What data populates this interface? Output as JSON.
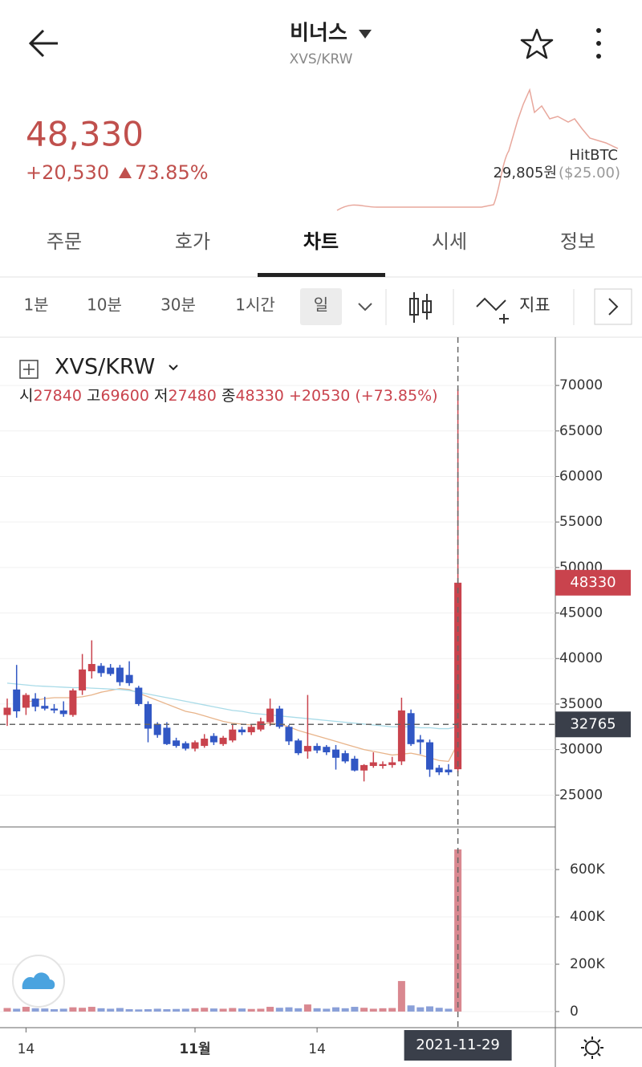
{
  "header": {
    "title": "비너스",
    "subtitle": "XVS/KRW"
  },
  "price": {
    "last": "48,330",
    "change": "+20,530",
    "change_pct": "73.85%",
    "exchange": "HitBTC",
    "exchange_price": "29,805원",
    "exchange_usd": "($25.00)"
  },
  "tabs": [
    "주문",
    "호가",
    "차트",
    "시세",
    "정보"
  ],
  "intervals": [
    "1분",
    "10분",
    "30분",
    "1시간",
    "일"
  ],
  "indicator": "지표",
  "chart_data": {
    "type": "candlestick",
    "title": "XVS/KRW",
    "ohlc_text": [
      {
        "label": "시",
        "value": "27840"
      },
      {
        "label": "고",
        "value": "69600"
      },
      {
        "label": "저",
        "value": "27480"
      },
      {
        "label": "종",
        "value": "48330"
      }
    ],
    "change_text": "+20530 (+73.85%)",
    "categories": [
      null,
      null,
      "14",
      null,
      null,
      null,
      null,
      null,
      null,
      null,
      null,
      null,
      null,
      null,
      null,
      null,
      null,
      null,
      null,
      null,
      "11월",
      null,
      null,
      null,
      null,
      null,
      null,
      null,
      null,
      null,
      null,
      null,
      null,
      "14",
      null,
      null,
      null,
      null,
      null,
      null,
      null,
      null,
      null,
      null,
      null,
      null,
      null,
      null,
      null
    ],
    "open": [
      33800,
      36600,
      34600,
      35600,
      34800,
      34500,
      34300,
      33800,
      36500,
      38600,
      39200,
      39000,
      39000,
      38200,
      36800,
      35000,
      32800,
      32400,
      31000,
      30700,
      30100,
      30400,
      31500,
      30600,
      31000,
      32200,
      31900,
      32200,
      33000,
      34500,
      32500,
      31000,
      29800,
      30400,
      30300,
      30000,
      29600,
      29000,
      27700,
      28200,
      28200,
      28300,
      28700,
      34000,
      31100,
      30800,
      28000,
      27800,
      27840
    ],
    "high": [
      35600,
      39300,
      36200,
      36200,
      35800,
      35000,
      35300,
      36700,
      40500,
      42000,
      39500,
      39400,
      39300,
      39700,
      37000,
      35300,
      33000,
      33000,
      31300,
      30900,
      31000,
      31700,
      31800,
      31500,
      32700,
      32500,
      32800,
      33500,
      35600,
      34800,
      32700,
      31200,
      36000,
      30700,
      30500,
      30500,
      29900,
      29300,
      28400,
      29700,
      28700,
      29200,
      35700,
      34400,
      31600,
      31100,
      28300,
      28400,
      69600
    ],
    "low": [
      32600,
      33500,
      33800,
      34200,
      34300,
      34000,
      33600,
      33600,
      36000,
      37800,
      38000,
      38100,
      37000,
      37000,
      34800,
      30800,
      31300,
      30500,
      30200,
      29900,
      29800,
      30200,
      30500,
      30400,
      30800,
      31600,
      31600,
      32000,
      32600,
      32300,
      30500,
      29400,
      29000,
      29600,
      29400,
      27800,
      28500,
      27600,
      26500,
      28000,
      27900,
      28000,
      28300,
      30400,
      29500,
      27000,
      27200,
      27200,
      27480
    ],
    "close": [
      34600,
      34200,
      36000,
      34700,
      34500,
      34300,
      33900,
      36500,
      38800,
      39400,
      38400,
      38300,
      37400,
      37300,
      35000,
      32300,
      31600,
      30600,
      30400,
      30100,
      30800,
      31200,
      30800,
      31300,
      32200,
      31900,
      32500,
      33100,
      34500,
      32500,
      30900,
      29600,
      30400,
      29900,
      29700,
      29100,
      28700,
      27700,
      28300,
      28600,
      28400,
      28600,
      34300,
      30600,
      30800,
      27800,
      27500,
      27500,
      48330
    ],
    "up_color": "#c9434d",
    "down_color": "#3157c4",
    "ma": [
      {
        "color": "#e8b48a",
        "values": [
          null,
          null,
          35200,
          35400,
          35600,
          35700,
          35700,
          35700,
          35800,
          36000,
          36300,
          36500,
          36700,
          36600,
          36200,
          35800,
          35400,
          35000,
          34600,
          34200,
          34000,
          33700,
          33400,
          33100,
          32900,
          32800,
          32700,
          32800,
          32900,
          32800,
          32500,
          32100,
          31800,
          31500,
          31200,
          30900,
          30600,
          30300,
          30000,
          29800,
          29600,
          29400,
          29500,
          29600,
          29400,
          29100,
          28800,
          28700,
          30700
        ]
      },
      {
        "color": "#a9dbe8",
        "values": [
          37300,
          37200,
          37100,
          37000,
          36950,
          36900,
          36850,
          36800,
          36800,
          36750,
          36700,
          36650,
          36600,
          36500,
          36300,
          36100,
          35900,
          35700,
          35500,
          35300,
          35100,
          34900,
          34700,
          34500,
          34300,
          34200,
          34000,
          33900,
          33800,
          33700,
          33600,
          33500,
          33400,
          33300,
          33200,
          33100,
          33000,
          32900,
          32800,
          32700,
          32600,
          32500,
          32500,
          32500,
          32400,
          32400,
          32300,
          32300,
          32500
        ]
      }
    ],
    "ylim": [
      21500,
      75300
    ],
    "yticks": [
      25000,
      30000,
      35000,
      40000,
      45000,
      50000,
      55000,
      60000,
      65000,
      70000
    ],
    "grid": true,
    "last_price": 48330,
    "crosshair_price": 32765,
    "crosshair_label": "2021-11-29",
    "volume": {
      "values": [
        15000,
        12000,
        20000,
        14000,
        13000,
        10000,
        12000,
        18000,
        16000,
        20000,
        14000,
        12000,
        15000,
        10000,
        9000,
        10000,
        12000,
        10000,
        11000,
        12000,
        14000,
        16000,
        13000,
        12000,
        15000,
        13000,
        11000,
        12000,
        20000,
        16000,
        18000,
        14000,
        30000,
        14000,
        12000,
        18000,
        14000,
        20000,
        16000,
        12000,
        14000,
        15000,
        129000,
        26000,
        18000,
        22000,
        16000,
        12000,
        685000
      ],
      "up_color": "#d98890",
      "down_color": "#8aa0d8",
      "ylim": [
        -68000,
        780000
      ],
      "yticks": [
        0,
        {
          "value": 200000,
          "label": "200K"
        },
        {
          "value": 400000,
          "label": "400K"
        },
        {
          "value": 600000,
          "label": "600K"
        }
      ]
    }
  }
}
